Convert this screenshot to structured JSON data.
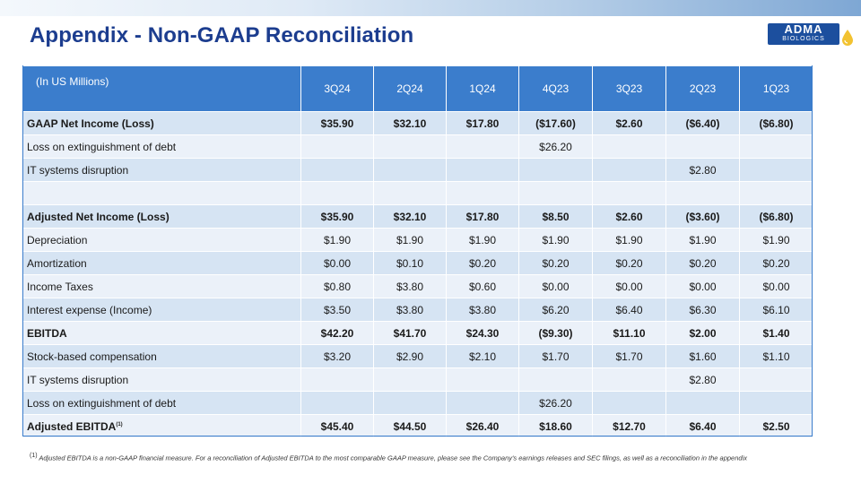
{
  "title": "Appendix - Non-GAAP Reconciliation",
  "logo": {
    "main": "ADMA",
    "sub": "BIOLOGICS"
  },
  "colors": {
    "title": "#1c3d8f",
    "header": "#3b7dcc",
    "row_dark": "#d6e4f3",
    "row_light": "#ebf1f9"
  },
  "table": {
    "label_header": "(In US Millions)",
    "columns": [
      "3Q24",
      "2Q24",
      "1Q24",
      "4Q23",
      "3Q23",
      "2Q23",
      "1Q23"
    ],
    "rows": [
      {
        "label": "GAAP Net Income (Loss)",
        "bold": true,
        "values": [
          "$35.90",
          "$32.10",
          "$17.80",
          "($17.60)",
          "$2.60",
          "($6.40)",
          "($6.80)"
        ]
      },
      {
        "label": "Loss on extinguishment of debt",
        "bold": false,
        "values": [
          "",
          "",
          "",
          "$26.20",
          "",
          "",
          ""
        ]
      },
      {
        "label": "IT systems disruption",
        "bold": false,
        "values": [
          "",
          "",
          "",
          "",
          "",
          "$2.80",
          ""
        ]
      },
      {
        "label": "",
        "bold": false,
        "values": [
          "",
          "",
          "",
          "",
          "",
          "",
          ""
        ]
      },
      {
        "label": "Adjusted Net Income (Loss)",
        "bold": true,
        "values": [
          "$35.90",
          "$32.10",
          "$17.80",
          "$8.50",
          "$2.60",
          "($3.60)",
          "($6.80)"
        ]
      },
      {
        "label": "Depreciation",
        "bold": false,
        "values": [
          "$1.90",
          "$1.90",
          "$1.90",
          "$1.90",
          "$1.90",
          "$1.90",
          "$1.90"
        ]
      },
      {
        "label": "Amortization",
        "bold": false,
        "values": [
          "$0.00",
          "$0.10",
          "$0.20",
          "$0.20",
          "$0.20",
          "$0.20",
          "$0.20"
        ]
      },
      {
        "label": "Income Taxes",
        "bold": false,
        "values": [
          "$0.80",
          "$3.80",
          "$0.60",
          "$0.00",
          "$0.00",
          "$0.00",
          "$0.00"
        ]
      },
      {
        "label": "Interest expense (Income)",
        "bold": false,
        "values": [
          "$3.50",
          "$3.80",
          "$3.80",
          "$6.20",
          "$6.40",
          "$6.30",
          "$6.10"
        ]
      },
      {
        "label": "EBITDA",
        "bold": true,
        "values": [
          "$42.20",
          "$41.70",
          "$24.30",
          "($9.30)",
          "$11.10",
          "$2.00",
          "$1.40"
        ]
      },
      {
        "label": "Stock-based compensation",
        "bold": false,
        "values": [
          "$3.20",
          "$2.90",
          "$2.10",
          "$1.70",
          "$1.70",
          "$1.60",
          "$1.10"
        ]
      },
      {
        "label": "IT systems disruption",
        "bold": false,
        "values": [
          "",
          "",
          "",
          "",
          "",
          "$2.80",
          ""
        ]
      },
      {
        "label": "Loss on extinguishment of debt",
        "bold": false,
        "values": [
          "",
          "",
          "",
          "$26.20",
          "",
          "",
          ""
        ]
      },
      {
        "label": "Adjusted EBITDA",
        "bold": true,
        "footnote": "(1)",
        "values": [
          "$45.40",
          "$44.50",
          "$26.40",
          "$18.60",
          "$12.70",
          "$6.40",
          "$2.50"
        ]
      }
    ]
  },
  "footnote": {
    "marker": "(1)",
    "text": "Adjusted EBITDA is a non-GAAP financial measure. For a reconciliation of Adjusted EBITDA to the most comparable GAAP measure, please see the Company's earnings releases and SEC filings, as well as a reconciliation in the appendix"
  }
}
